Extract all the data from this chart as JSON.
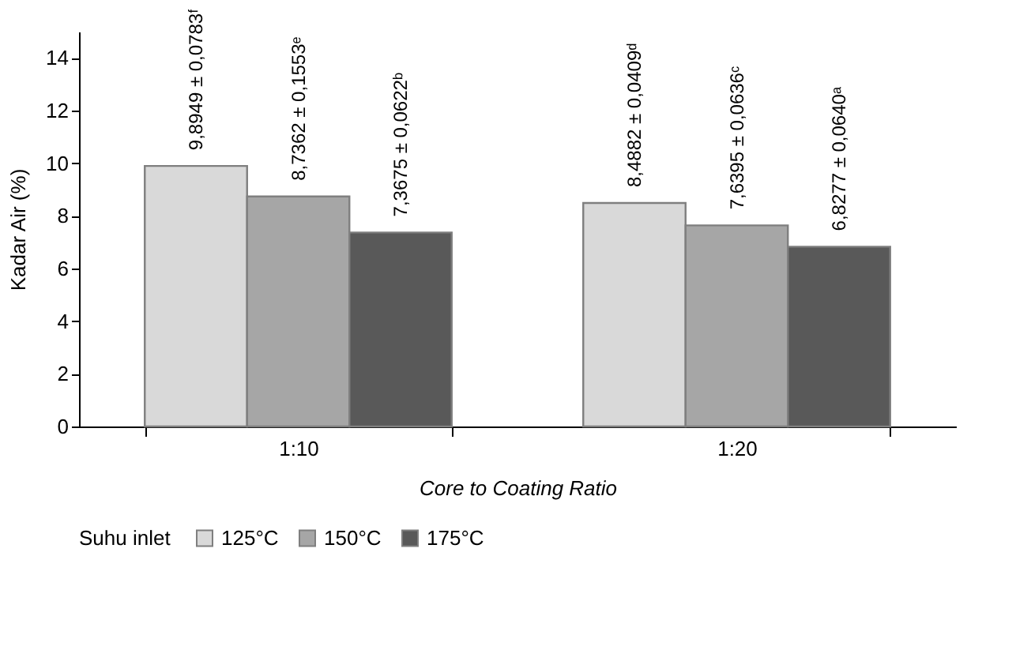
{
  "chart_data": {
    "type": "bar",
    "xlabel": "Core to Coating Ratio",
    "ylabel": "Kadar Air (%)",
    "legend_title": "Suhu inlet",
    "categories": [
      "1:10",
      "1:20"
    ],
    "series": [
      {
        "name": "125°C",
        "color": "#d9d9d9",
        "values": [
          9.8949,
          8.4882
        ],
        "value_labels": [
          "9,8949 ± 0,0783ᶠ",
          "8,4882 ± 0,0409ᵈ"
        ]
      },
      {
        "name": "150°C",
        "color": "#a6a6a6",
        "values": [
          8.7362,
          7.6395
        ],
        "value_labels": [
          "8,7362 ± 0,1553ᵉ",
          "7,6395 ± 0,0636ᶜ"
        ]
      },
      {
        "name": "175°C",
        "color": "#595959",
        "values": [
          7.3675,
          6.8277
        ],
        "value_labels": [
          "7,3675 ± 0,0622ᵇ",
          "6,8277 ± 0,0640ᵃ"
        ]
      }
    ],
    "ylim": [
      0,
      15
    ],
    "yticks": [
      0,
      2,
      4,
      6,
      8,
      10,
      12,
      14
    ],
    "grid": false,
    "legend": "bottom"
  }
}
